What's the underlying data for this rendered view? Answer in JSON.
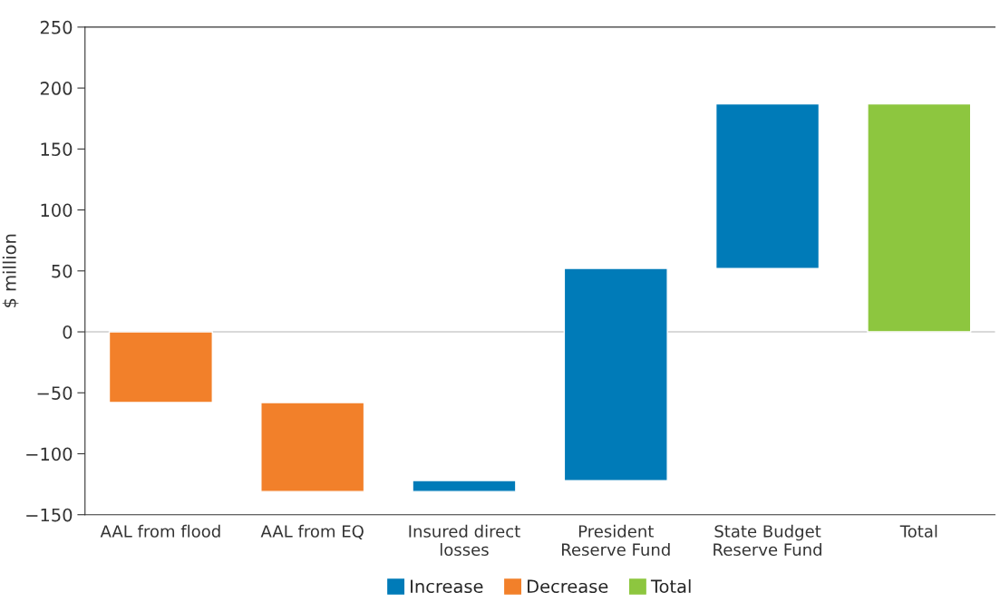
{
  "chart_data": {
    "type": "bar",
    "ylabel": "$ million",
    "categories": [
      "AAL from flood",
      "AAL from EQ",
      "Insured direct\nlosses",
      "President\nReserve Fund",
      "State Budget\nReserve Fund",
      "Total"
    ],
    "series": [
      {
        "name": "Increase",
        "color": "#007bb8",
        "values": [
          null,
          null,
          9,
          174,
          135,
          null
        ],
        "base": [
          null,
          null,
          -131,
          -122,
          52,
          null
        ]
      },
      {
        "name": "Decrease",
        "color": "#f2802a",
        "values": [
          -58,
          -73,
          null,
          null,
          null,
          null
        ],
        "base": [
          0,
          -58,
          null,
          null,
          null,
          null
        ]
      },
      {
        "name": "Total",
        "color": "#8dc63f",
        "values": [
          null,
          null,
          null,
          null,
          null,
          187
        ],
        "base": [
          null,
          null,
          null,
          null,
          null,
          0
        ]
      }
    ],
    "ylim": [
      -150,
      250
    ],
    "yticks": [
      {
        "value": -150,
        "label": "−150"
      },
      {
        "value": -100,
        "label": "−100"
      },
      {
        "value": -50,
        "label": "−50"
      },
      0,
      50,
      100,
      150,
      200,
      250
    ],
    "ref_lines": [
      {
        "axis": "y",
        "value": 0,
        "color": "#d9d9d9"
      }
    ],
    "grid": false,
    "legend": "bottom"
  }
}
